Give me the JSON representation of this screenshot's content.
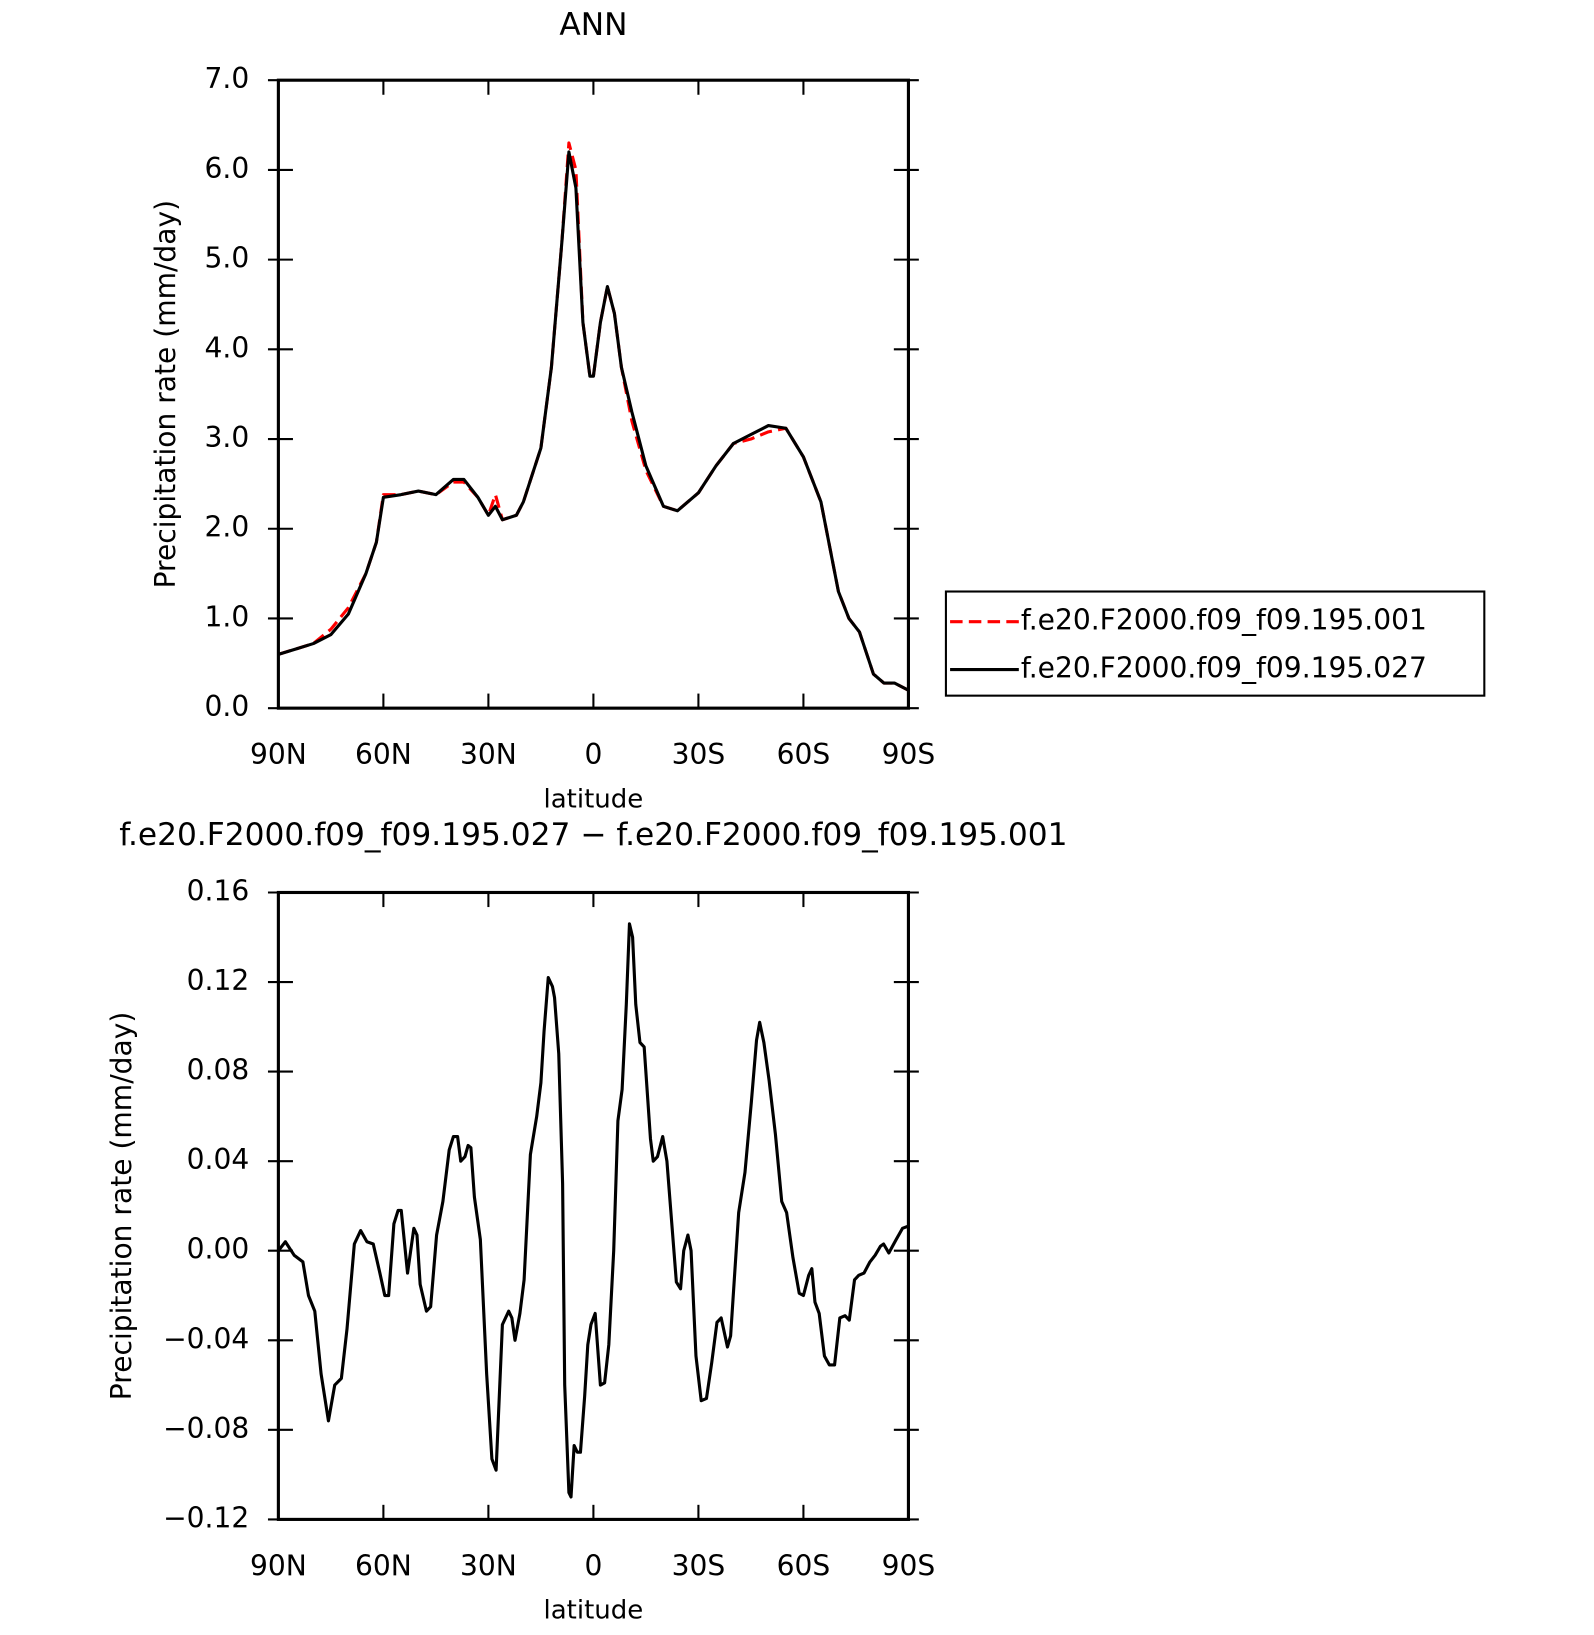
{
  "chart_data": [
    {
      "type": "line",
      "title": "ANN",
      "xlabel": "latitude",
      "ylabel": "Precipitation rate (mm/day)",
      "xlim": [
        90,
        -90
      ],
      "xticks": [
        {
          "value": 90,
          "label": "90N"
        },
        {
          "value": 60,
          "label": "60N"
        },
        {
          "value": 30,
          "label": "30N"
        },
        0,
        {
          "value": -30,
          "label": "30S"
        },
        {
          "value": -60,
          "label": "60S"
        },
        {
          "value": -90,
          "label": "90S"
        }
      ],
      "ylim": [
        0,
        7
      ],
      "yticks": [
        {
          "value": 0,
          "label": "0.0"
        },
        {
          "value": 1,
          "label": "1.0"
        },
        {
          "value": 2,
          "label": "2.0"
        },
        {
          "value": 3,
          "label": "3.0"
        },
        {
          "value": 4,
          "label": "4.0"
        },
        {
          "value": 5,
          "label": "5.0"
        },
        {
          "value": 6,
          "label": "6.0"
        },
        {
          "value": 7,
          "label": "7.0"
        }
      ],
      "legend": "right",
      "x": [
        90,
        85,
        80,
        75,
        70,
        65,
        62,
        60,
        55,
        50,
        45,
        40,
        37,
        33,
        30,
        28,
        26,
        22,
        20,
        15,
        12,
        9,
        7,
        5,
        3,
        1,
        0,
        -2,
        -4,
        -6,
        -8,
        -11,
        -15,
        -20,
        -24,
        -30,
        -35,
        -40,
        -45,
        -50,
        -55,
        -60,
        -65,
        -70,
        -73,
        -76,
        -80,
        -83,
        -86,
        -90
      ],
      "series": [
        {
          "name": "f.e20.F2000.f09_f09.195.001",
          "color": "#ff0000",
          "style": "dashed",
          "values": [
            0.6,
            0.66,
            0.72,
            0.88,
            1.12,
            1.5,
            1.85,
            2.38,
            2.38,
            2.42,
            2.38,
            2.52,
            2.52,
            2.35,
            2.15,
            2.38,
            2.1,
            2.15,
            2.3,
            2.9,
            3.8,
            5.2,
            6.3,
            6.0,
            4.3,
            3.7,
            3.7,
            4.3,
            4.7,
            4.4,
            3.8,
            3.2,
            2.65,
            2.25,
            2.2,
            2.4,
            2.7,
            2.95,
            3.0,
            3.08,
            3.12,
            2.8,
            2.3,
            1.3,
            1.0,
            0.85,
            0.38,
            0.28,
            0.28,
            0.2
          ]
        },
        {
          "name": "f.e20.F2000.f09_f09.195.027",
          "color": "#000000",
          "style": "solid",
          "values": [
            0.6,
            0.66,
            0.72,
            0.82,
            1.05,
            1.5,
            1.85,
            2.35,
            2.38,
            2.42,
            2.38,
            2.55,
            2.55,
            2.35,
            2.15,
            2.25,
            2.1,
            2.15,
            2.3,
            2.9,
            3.8,
            5.2,
            6.2,
            5.8,
            4.3,
            3.7,
            3.7,
            4.3,
            4.7,
            4.4,
            3.8,
            3.3,
            2.7,
            2.25,
            2.2,
            2.4,
            2.7,
            2.95,
            3.05,
            3.15,
            3.12,
            2.8,
            2.3,
            1.3,
            1.0,
            0.85,
            0.38,
            0.28,
            0.28,
            0.2
          ]
        }
      ]
    },
    {
      "type": "line",
      "title": "f.e20.F2000.f09_f09.195.027 − f.e20.F2000.f09_f09.195.001",
      "xlabel": "latitude",
      "ylabel": "Precipitation rate  (mm/day)",
      "xlim": [
        90,
        -90
      ],
      "xticks": [
        {
          "value": 90,
          "label": "90N"
        },
        {
          "value": 60,
          "label": "60N"
        },
        {
          "value": 30,
          "label": "30N"
        },
        0,
        {
          "value": -30,
          "label": "30S"
        },
        {
          "value": -60,
          "label": "60S"
        },
        {
          "value": -90,
          "label": "90S"
        }
      ],
      "ylim": [
        -0.12,
        0.16
      ],
      "yticks": [
        {
          "value": -0.12,
          "label": "−0.12"
        },
        {
          "value": -0.08,
          "label": "−0.08"
        },
        {
          "value": -0.04,
          "label": "−0.04"
        },
        {
          "value": 0,
          "label": "0.00"
        },
        {
          "value": 0.04,
          "label": "0.04"
        },
        {
          "value": 0.08,
          "label": "0.08"
        },
        {
          "value": 0.12,
          "label": "0.12"
        },
        0.16
      ],
      "x": [
        90,
        88,
        85.5,
        83,
        81.4,
        79.6,
        77.8,
        75.7,
        73.9,
        72,
        70.4,
        68.3,
        66.5,
        64.7,
        62.9,
        61,
        59.6,
        58.5,
        57,
        55.8,
        54.9,
        53.1,
        51.3,
        50.4,
        49.5,
        47.7,
        46.5,
        44.8,
        43,
        41.2,
        40,
        38.8,
        37.9,
        36.7,
        35.8,
        35,
        34,
        32.3,
        30.5,
        29,
        27.8,
        26,
        24.2,
        23.3,
        22.4,
        21,
        19.8,
        18,
        16.2,
        15,
        14.1,
        12.9,
        11.7,
        11.1,
        9.9,
        8.8,
        8.2,
        7,
        6.4,
        5.5,
        4.6,
        3.7,
        2.5,
        1.6,
        0.7,
        -0.5,
        -2,
        -3.2,
        -4.4,
        -5.8,
        -7,
        -8.2,
        -9.4,
        -10.3,
        -11.2,
        -12.1,
        -13.3,
        -14.5,
        -16.3,
        -17.1,
        -18.3,
        -19.8,
        -21,
        -22.5,
        -23.7,
        -24.9,
        -25.8,
        -27,
        -27.9,
        -29.3,
        -30.8,
        -32.3,
        -33.8,
        -35.3,
        -36.5,
        -38.3,
        -39.2,
        -41.5,
        -43.3,
        -45.1,
        -46.6,
        -47.5,
        -48.7,
        -50.2,
        -52,
        -53.8,
        -55.2,
        -57,
        -58.8,
        -60,
        -61.5,
        -62.4,
        -63.3,
        -64.5,
        -66,
        -67.4,
        -68.9,
        -70.4,
        -71.9,
        -73.1,
        -74.6,
        -75.8,
        -77.3,
        -79,
        -80.5,
        -82,
        -82.9,
        -84.4,
        -86.5,
        -88.3,
        -90
      ],
      "series": [
        {
          "color": "#000000",
          "style": "solid",
          "values": [
            0,
            0.004,
            -0.002,
            -0.005,
            -0.02,
            -0.027,
            -0.055,
            -0.076,
            -0.06,
            -0.057,
            -0.035,
            0.003,
            0.009,
            0.004,
            0.003,
            -0.01,
            -0.02,
            -0.02,
            0.012,
            0.018,
            0.018,
            -0.01,
            0.01,
            0.007,
            -0.015,
            -0.027,
            -0.025,
            0.007,
            0.022,
            0.045,
            0.051,
            0.051,
            0.04,
            0.042,
            0.047,
            0.046,
            0.024,
            0.005,
            -0.055,
            -0.093,
            -0.098,
            -0.033,
            -0.027,
            -0.03,
            -0.04,
            -0.028,
            -0.013,
            0.043,
            0.06,
            0.075,
            0.098,
            0.122,
            0.118,
            0.113,
            0.088,
            0.03,
            -0.06,
            -0.108,
            -0.11,
            -0.087,
            -0.09,
            -0.09,
            -0.065,
            -0.042,
            -0.033,
            -0.028,
            -0.06,
            -0.059,
            -0.042,
            0,
            0.058,
            0.072,
            0.11,
            0.146,
            0.14,
            0.11,
            0.093,
            0.091,
            0.05,
            0.04,
            0.042,
            0.051,
            0.04,
            0.01,
            -0.014,
            -0.017,
            0,
            0.007,
            0,
            -0.047,
            -0.067,
            -0.066,
            -0.05,
            -0.032,
            -0.03,
            -0.043,
            -0.038,
            0.017,
            0.035,
            0.066,
            0.094,
            0.102,
            0.093,
            0.076,
            0.052,
            0.022,
            0.017,
            -0.003,
            -0.019,
            -0.02,
            -0.011,
            -0.008,
            -0.023,
            -0.028,
            -0.047,
            -0.051,
            -0.051,
            -0.03,
            -0.029,
            -0.031,
            -0.013,
            -0.011,
            -0.01,
            -0.005,
            -0.002,
            0.002,
            0.003,
            -0.001,
            0.005,
            0.01,
            0.011
          ]
        }
      ]
    }
  ]
}
